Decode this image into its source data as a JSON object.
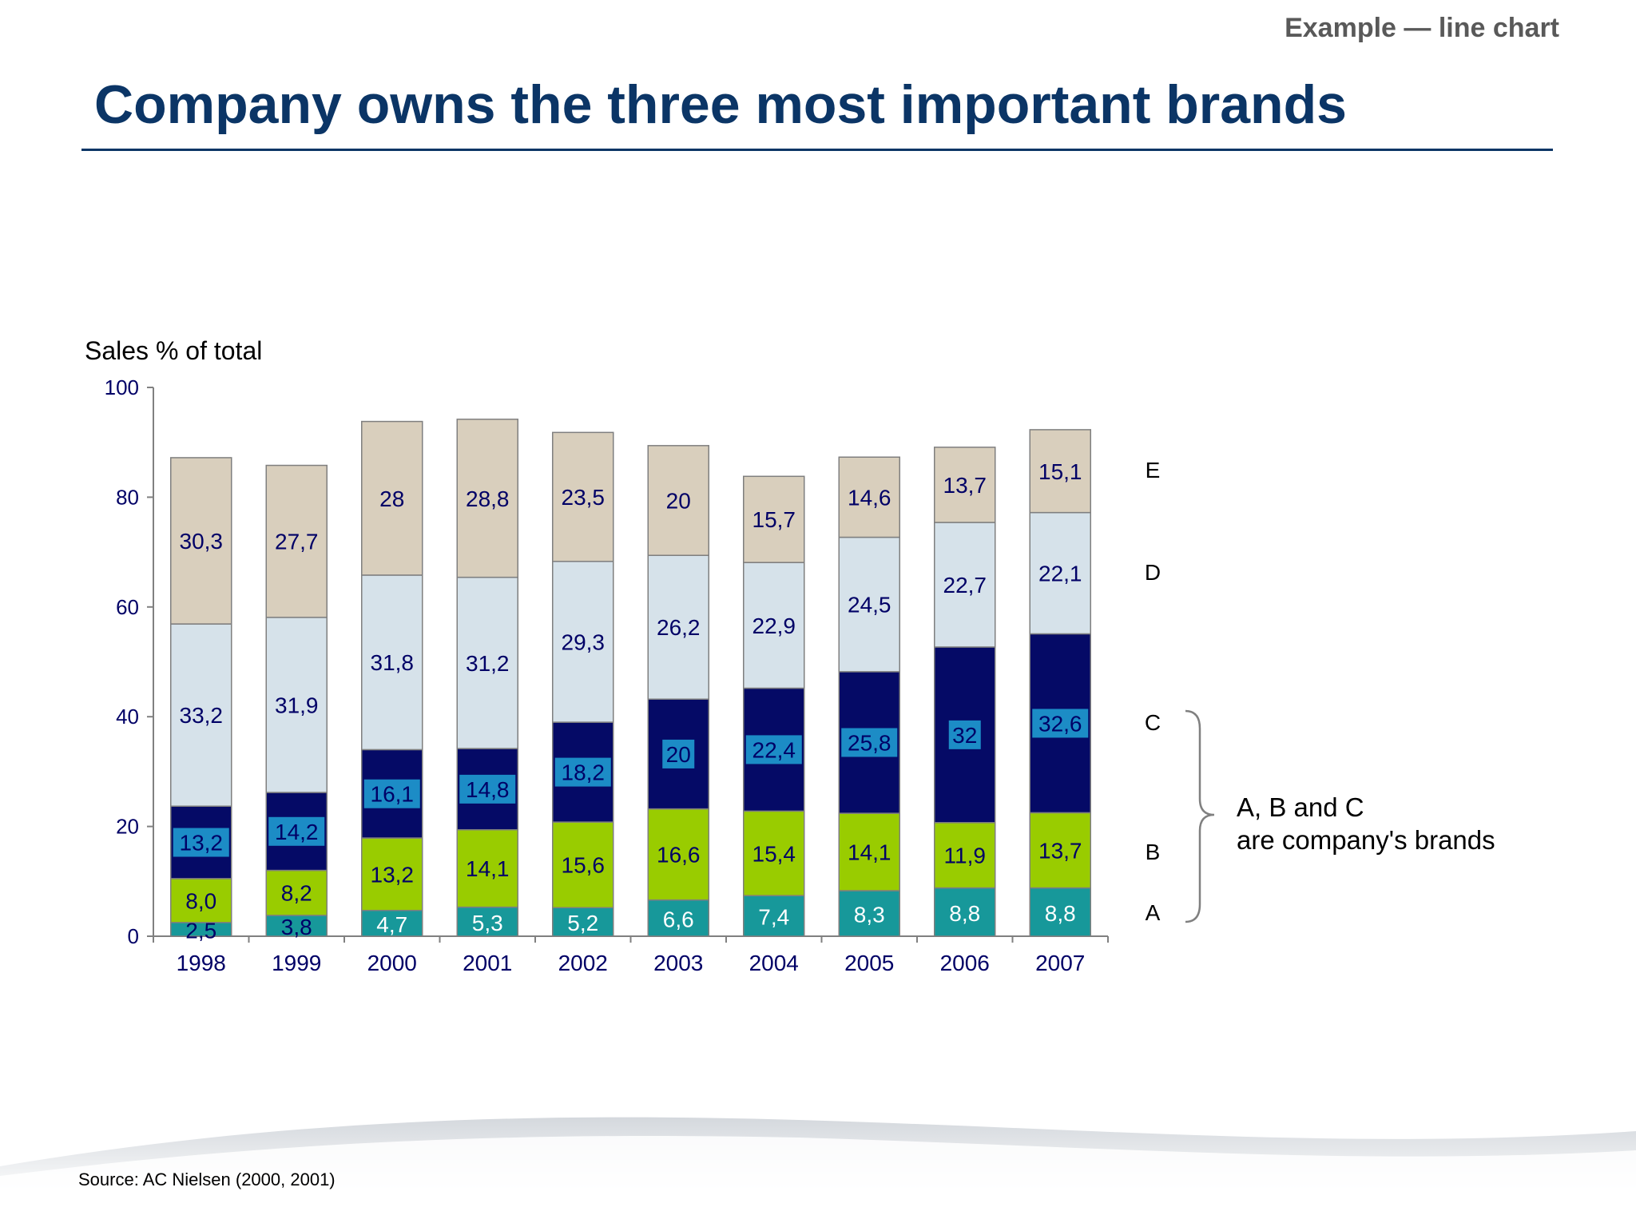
{
  "header": {
    "tag": "Example — line chart",
    "title": "Company owns the three most important brands"
  },
  "footer": {
    "source": "Source: AC Nielsen (2000, 2001)"
  },
  "bracket_note": "A, B and C are company's brands",
  "colors": {
    "title": "#0b3566",
    "A": "#17989a",
    "B": "#99cc00",
    "C": "#050a66",
    "D": "#d6e2ea",
    "E": "#d9cfbd",
    "label_dark": "#000066",
    "label_box": "#1c8cc6"
  },
  "chart_data": {
    "type": "bar",
    "stacked": true,
    "ylabel": "Sales % of total",
    "ylim": [
      0,
      100
    ],
    "yticks": [
      0,
      20,
      40,
      60,
      80,
      100
    ],
    "categories": [
      "1998",
      "1999",
      "2000",
      "2001",
      "2002",
      "2003",
      "2004",
      "2005",
      "2006",
      "2007"
    ],
    "series": [
      {
        "name": "A",
        "values": [
          2.5,
          3.8,
          4.7,
          5.3,
          5.2,
          6.6,
          7.4,
          8.3,
          8.8,
          8.8
        ],
        "labels": [
          "2,5",
          "3,8",
          "4,7",
          "5,3",
          "5,2",
          "6,6",
          "7,4",
          "8,3",
          "8,8",
          "8,8"
        ]
      },
      {
        "name": "B",
        "values": [
          8.0,
          8.2,
          13.2,
          14.1,
          15.6,
          16.6,
          15.4,
          14.1,
          11.9,
          13.7
        ],
        "labels": [
          "8,0",
          "8,2",
          "13,2",
          "14,1",
          "15,6",
          "16,6",
          "15,4",
          "14,1",
          "11,9",
          "13,7"
        ]
      },
      {
        "name": "C",
        "values": [
          13.2,
          14.2,
          16.1,
          14.8,
          18.2,
          20,
          22.4,
          25.8,
          32,
          32.6
        ],
        "labels": [
          "13,2",
          "14,2",
          "16,1",
          "14,8",
          "18,2",
          "20",
          "22,4",
          "25,8",
          "32",
          "32,6"
        ]
      },
      {
        "name": "D",
        "values": [
          33.2,
          31.9,
          31.8,
          31.2,
          29.3,
          26.2,
          22.9,
          24.5,
          22.7,
          22.1
        ],
        "labels": [
          "33,2",
          "31,9",
          "31,8",
          "31,2",
          "29,3",
          "26,2",
          "22,9",
          "24,5",
          "22,7",
          "22,1"
        ]
      },
      {
        "name": "E",
        "values": [
          30.3,
          27.7,
          28,
          28.8,
          23.5,
          20,
          15.7,
          14.6,
          13.7,
          15.1
        ],
        "labels": [
          "30,3",
          "27,7",
          "28",
          "28,8",
          "23,5",
          "20",
          "15,7",
          "14,6",
          "13,7",
          "15,1"
        ]
      }
    ]
  }
}
